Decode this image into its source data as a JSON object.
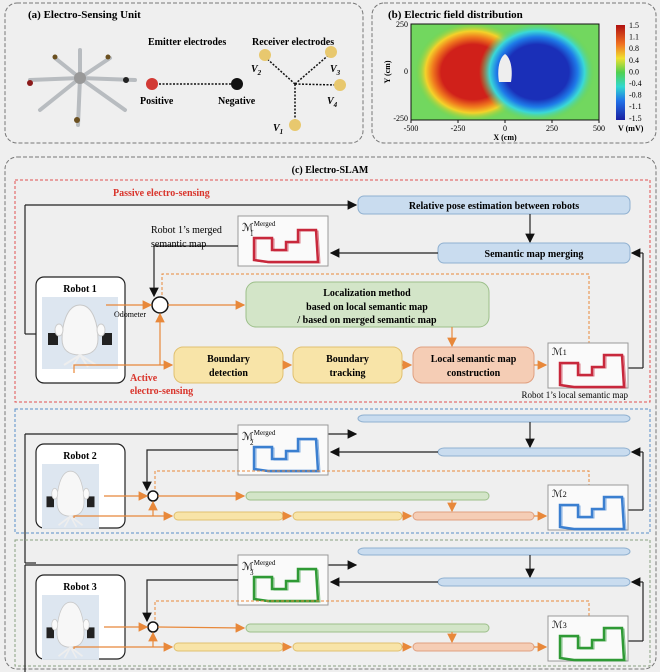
{
  "panel_a": {
    "title": "(a) Electro-Sensing Unit",
    "emitter_label": "Emitter electrodes",
    "receiver_label": "Receiver electrodes",
    "positive": "Positive",
    "negative": "Negative",
    "v1": "V",
    "v1_sub": "1",
    "v2": "V",
    "v2_sub": "2",
    "v3": "V",
    "v3_sub": "3",
    "v4": "V",
    "v4_sub": "4",
    "colors": {
      "positive": "#d23a35",
      "negative": "#111111",
      "receiver": "#e8c86e"
    }
  },
  "panel_b": {
    "title": "(b) Electric field distribution",
    "xlabel": "X (cm)",
    "ylabel": "Y (cm)",
    "x_ticks": [
      "-500",
      "-250",
      "0",
      "250",
      "500"
    ],
    "y_ticks": [
      "250",
      "0",
      "-250"
    ],
    "colorbar_label": "V (mV)",
    "colorbar_ticks": [
      "1.5",
      "1.1",
      "0.8",
      "0.4",
      "0.0",
      "-0.4",
      "-0.8",
      "-1.1",
      "-1.5"
    ]
  },
  "panel_c": {
    "title": "(c) Electro-SLAM",
    "passive_label": "Passive electro-sensing",
    "active_label_1": "Active",
    "active_label_2": "electro-sensing",
    "relative_pose": "Relative pose estimation between robots",
    "map_merging": "Semantic map merging",
    "merged_caption_1": "Robot 1’s merged",
    "merged_caption_2": "semantic  map",
    "odometer": "Odometer",
    "localization_1": "Localization method",
    "localization_2": "based on local semantic  map",
    "localization_3": "/ based on merged semantic  map",
    "boundary_detection_1": "Boundary",
    "boundary_detection_2": "detection",
    "boundary_tracking_1": "Boundary",
    "boundary_tracking_2": "tracking",
    "local_map_1": "Local semantic map",
    "local_map_2": "construction",
    "local_caption": "Robot 1’s local semantic  map",
    "map_symbol": "ℳ",
    "merged_sup": "Merged",
    "robots": [
      {
        "name": "Robot 1",
        "sub": "1",
        "map_color": "#c8283c"
      },
      {
        "name": "Robot 2",
        "sub": "2",
        "map_color": "#3b7fd0"
      },
      {
        "name": "Robot 3",
        "sub": "3",
        "map_color": "#2f9a35"
      }
    ],
    "colors": {
      "passive": "#d9342b",
      "active": "#d9342b",
      "blue_box": "#c9dcef",
      "green_box": "#d3e5c8",
      "yellow_box": "#f8e4a8",
      "orange_box": "#f5cdb5",
      "orange_arrow": "#e8883a"
    }
  }
}
